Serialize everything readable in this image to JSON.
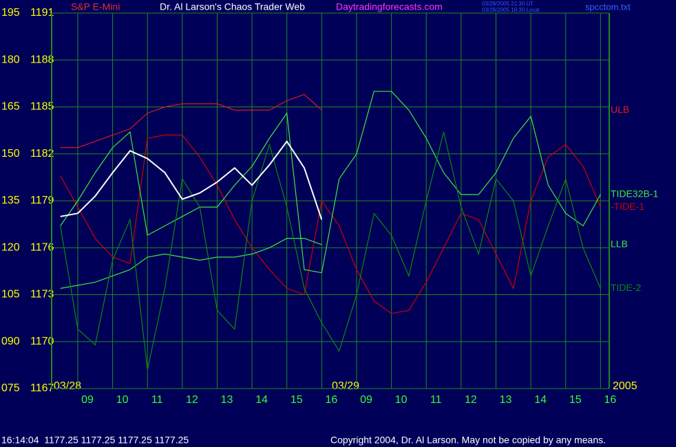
{
  "chart_data": {
    "type": "line",
    "title": "Dr. Al Larson's Chaos Trader Web",
    "website": "Daytradingforecasts.com",
    "timestamp_lines": [
      "03/28/2005 21:30 UT",
      "03/28/2005 16:30 Local"
    ],
    "file": "spcctom.txt",
    "annotations": [
      "03/28",
      "03/29",
      "2005"
    ],
    "status": "16:14:04  1177.25 1177.25 1177.25 1177.25",
    "copyright": "Copyright 2004, Dr. Al Larson. May not be copied by any means.",
    "grid": true,
    "xlim": [
      8.25,
      24.25
    ],
    "xticks": [
      {
        "value": 9,
        "label": "09"
      },
      10,
      11,
      12,
      13,
      14,
      15,
      16,
      {
        "value": 17,
        "label": "09"
      },
      {
        "value": 18,
        "label": "10"
      },
      {
        "value": 19,
        "label": "11"
      },
      {
        "value": 20,
        "label": "12"
      },
      {
        "value": 21,
        "label": "13"
      },
      {
        "value": 22,
        "label": "14"
      },
      {
        "value": 23,
        "label": "15"
      },
      {
        "value": 24,
        "label": "16"
      }
    ],
    "ylim": [
      75,
      195
    ],
    "yticks": [
      195,
      180,
      165,
      150,
      135,
      120,
      105,
      {
        "value": 90,
        "label": "090"
      },
      {
        "value": 75,
        "label": "075"
      }
    ],
    "y2lim": [
      1167,
      1191
    ],
    "y2ticks": [
      1191,
      1188,
      1185,
      1182,
      1179,
      1176,
      1173,
      1170,
      1167
    ],
    "x": [
      8.5,
      9,
      9.5,
      10,
      10.5,
      11,
      11.5,
      12,
      12.5,
      13,
      13.5,
      14,
      14.5,
      15,
      15.5,
      16,
      16.5,
      17,
      17.5,
      18,
      18.5,
      19,
      19.5,
      20,
      20.5,
      21,
      21.5,
      22,
      22.5,
      23,
      23.5,
      24
    ],
    "series": [
      {
        "name": "ULB",
        "color": "#e01818",
        "values": [
          152,
          152,
          154,
          156,
          158,
          163,
          165,
          166,
          166,
          166,
          164,
          164,
          164,
          167,
          169,
          164,
          null,
          null,
          null,
          null,
          null,
          null,
          null,
          null,
          null,
          null,
          null,
          null,
          null,
          null,
          null,
          null
        ]
      },
      {
        "name": "-TIDE-1",
        "color": "#d00000",
        "values": [
          143,
          133,
          123,
          117,
          115,
          155,
          156,
          156,
          149,
          140,
          129,
          120,
          113,
          107,
          105,
          135,
          127,
          113,
          103,
          99,
          100,
          109,
          120,
          131,
          129,
          118,
          107,
          135,
          149,
          153,
          146,
          133
        ]
      },
      {
        "name": "TIDE32B-1",
        "color": "#3ee83e",
        "values": [
          127,
          135,
          144,
          152,
          157,
          124,
          127,
          130,
          133,
          133,
          140,
          146,
          155,
          163,
          113,
          112,
          142,
          150,
          170,
          170,
          164,
          155,
          144,
          137,
          137,
          144,
          155,
          162,
          140,
          131,
          127,
          137
        ]
      },
      {
        "name": "LLB",
        "color": "#3ee83e",
        "values": [
          107,
          108,
          109,
          111,
          113,
          117,
          118,
          117,
          116,
          117,
          117,
          118,
          120,
          123,
          123,
          121,
          null,
          null,
          null,
          null,
          null,
          null,
          null,
          null,
          null,
          null,
          null,
          null,
          null,
          null,
          null,
          null
        ]
      },
      {
        "name": "TIDE-2",
        "color": "#0a8a0a",
        "values": [
          127,
          94,
          89,
          116,
          129,
          81,
          107,
          142,
          133,
          100,
          94,
          135,
          153,
          133,
          107,
          96,
          87,
          105,
          131,
          124,
          111,
          135,
          157,
          133,
          118,
          142,
          135,
          111,
          127,
          142,
          120,
          107
        ]
      },
      {
        "name": "S&P E-Mini",
        "color": "#ffffff",
        "axis": "y2",
        "values": [
          1178.0,
          1178.2,
          1179.3,
          1180.8,
          1182.2,
          1181.7,
          1180.8,
          1179.1,
          1179.5,
          1180.2,
          1181.1,
          1180.0,
          1181.3,
          1182.8,
          1181.1,
          1177.8,
          null,
          null,
          null,
          null,
          null,
          null,
          null,
          null,
          null,
          null,
          null,
          null,
          null,
          null,
          null,
          null
        ]
      }
    ]
  }
}
